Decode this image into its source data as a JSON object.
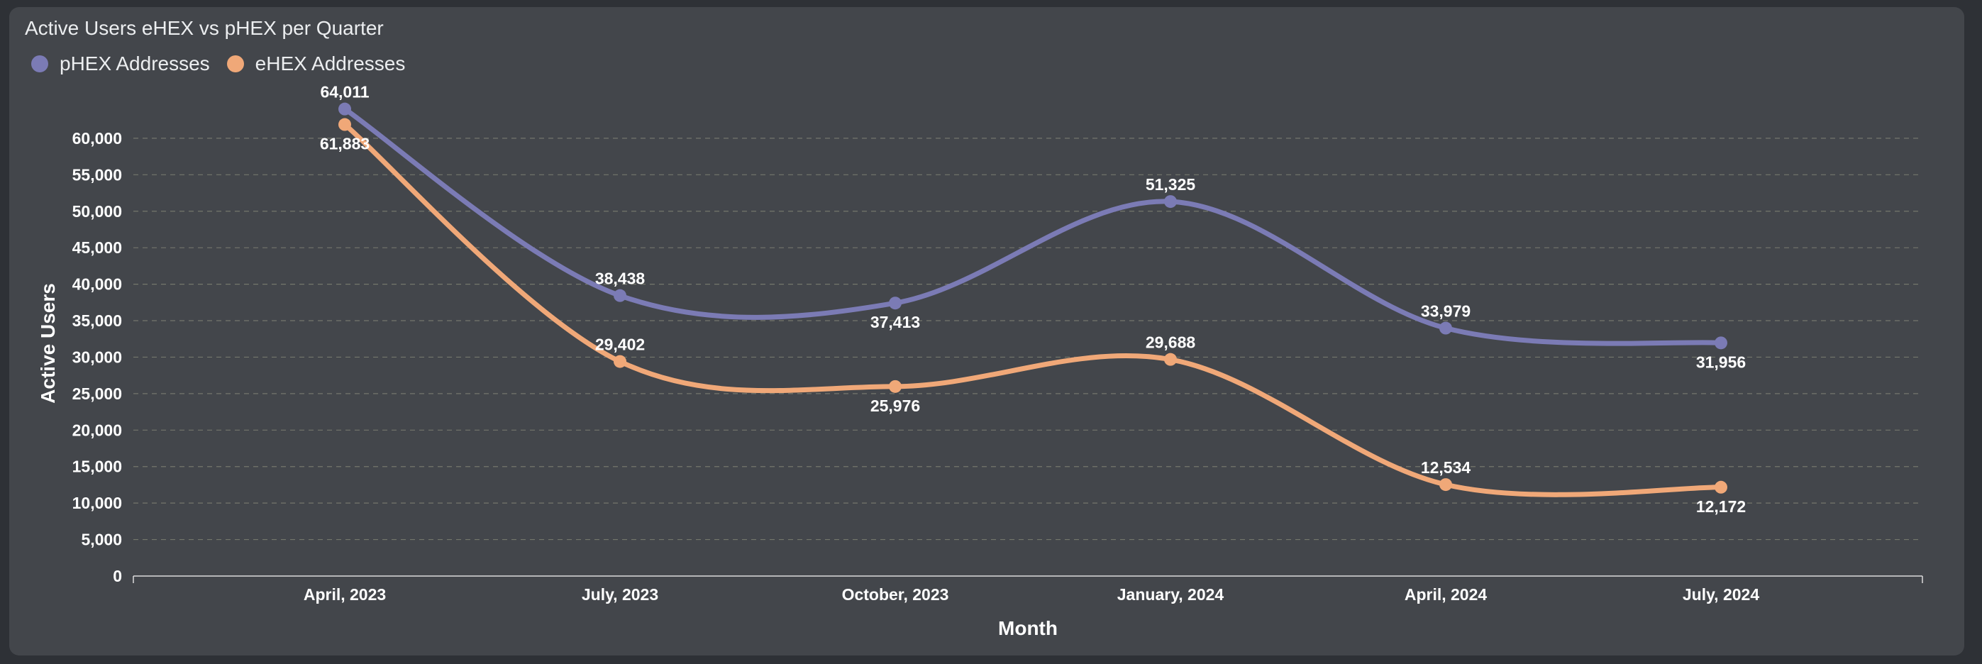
{
  "chart_data": {
    "type": "line",
    "title": "Active Users eHEX vs pHEX per Quarter",
    "xlabel": "Month",
    "ylabel": "Active Users",
    "categories": [
      "April, 2023",
      "July, 2023",
      "October, 2023",
      "January, 2024",
      "April, 2024",
      "July, 2024"
    ],
    "ylim": [
      0,
      65000
    ],
    "yticks": [
      0,
      5000,
      10000,
      15000,
      20000,
      25000,
      30000,
      35000,
      40000,
      45000,
      50000,
      55000,
      60000
    ],
    "ytick_labels": [
      "0",
      "5,000",
      "10,000",
      "15,000",
      "20,000",
      "25,000",
      "30,000",
      "35,000",
      "40,000",
      "45,000",
      "50,000",
      "55,000",
      "60,000"
    ],
    "grid": true,
    "legend_position": "top-left",
    "series": [
      {
        "name": "pHEX Addresses",
        "color": "#7b7bb5",
        "values": [
          64011,
          38438,
          37413,
          51325,
          33979,
          31956
        ],
        "labels": [
          "64,011",
          "38,438",
          "37,413",
          "51,325",
          "33,979",
          "31,956"
        ],
        "label_pos": [
          "above",
          "above",
          "below",
          "above",
          "above",
          "below"
        ]
      },
      {
        "name": "eHEX Addresses",
        "color": "#f0a878",
        "values": [
          61883,
          29402,
          25976,
          29688,
          12534,
          12172
        ],
        "labels": [
          "61,883",
          "29,402",
          "25,976",
          "29,688",
          "12,534",
          "12,172"
        ],
        "label_pos": [
          "below",
          "above",
          "below",
          "above",
          "above",
          "below"
        ]
      }
    ]
  }
}
